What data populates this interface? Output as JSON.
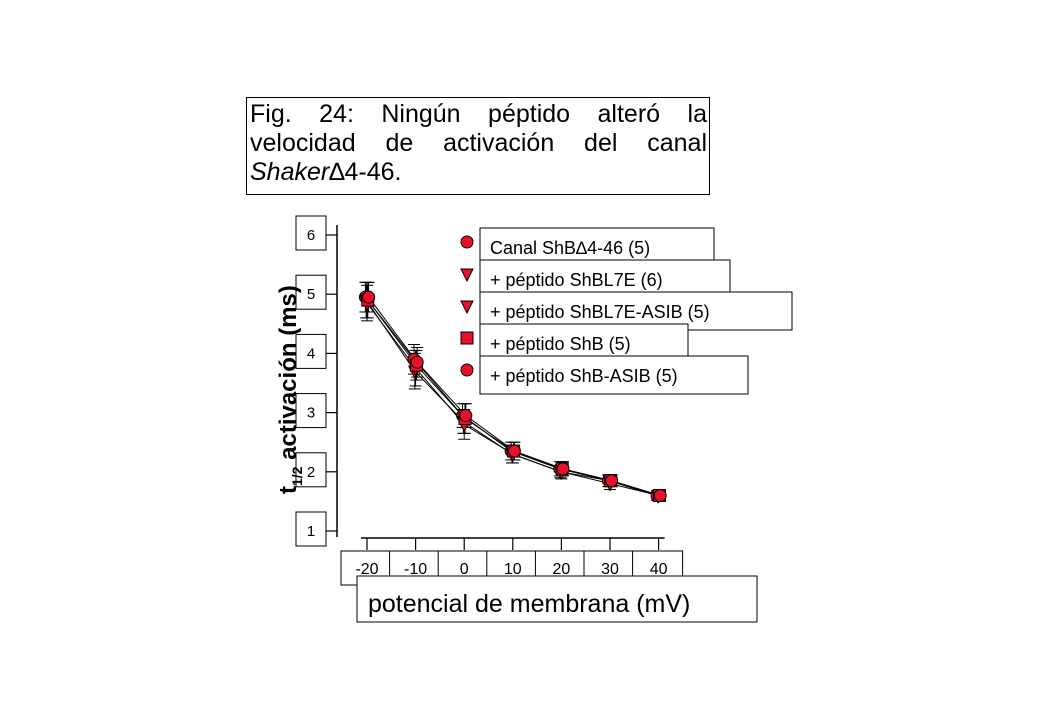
{
  "caption": {
    "line1": "Fig. 24: Ningún péptido alteró la velocidad de activación del canal",
    "italic": "Shaker",
    "delta": "∆",
    "end": "4-46."
  },
  "chart_data": {
    "type": "line",
    "title": "",
    "xlabel": "potencial de membrana (mV)",
    "ylabel_main": "t",
    "ylabel_sub": "1/2",
    "ylabel_rest": " activación (ms)",
    "xlim": [
      -20,
      40
    ],
    "ylim": [
      1,
      6
    ],
    "xticks": [
      -20,
      -10,
      0,
      10,
      20,
      30,
      40
    ],
    "yticks": [
      1,
      2,
      3,
      4,
      5,
      6
    ],
    "x": [
      -20,
      -10,
      0,
      10,
      20,
      30,
      40
    ],
    "marker_color": "#e8102a",
    "series": [
      {
        "name": "Canal ShB∆4-46 (5)",
        "marker": "circle",
        "values": [
          4.95,
          3.9,
          2.95,
          2.35,
          2.05,
          1.85,
          1.6
        ],
        "err": [
          0.25,
          0.25,
          0.2,
          0.15,
          0.12,
          0.1,
          0.08
        ]
      },
      {
        "name": "+ péptido ShBL7E (6)",
        "marker": "triangle",
        "values": [
          4.9,
          3.7,
          2.85,
          2.3,
          2.0,
          1.85,
          1.6
        ],
        "err": [
          0.3,
          0.3,
          0.2,
          0.15,
          0.1,
          0.1,
          0.08
        ]
      },
      {
        "name": "+ péptido ShBL7E-ASIB (5)",
        "marker": "triangle",
        "values": [
          4.85,
          3.75,
          2.8,
          2.3,
          2.0,
          1.8,
          1.6
        ],
        "err": [
          0.3,
          0.3,
          0.25,
          0.15,
          0.12,
          0.1,
          0.08
        ]
      },
      {
        "name": "+ péptido ShB (5)",
        "marker": "square",
        "values": [
          4.9,
          3.8,
          2.9,
          2.35,
          2.05,
          1.85,
          1.6
        ],
        "err": [
          0.3,
          0.25,
          0.25,
          0.15,
          0.12,
          0.1,
          0.08
        ]
      },
      {
        "name": "+ péptido ShB-ASIB (5)",
        "marker": "circle",
        "values": [
          4.95,
          3.85,
          2.95,
          2.35,
          2.05,
          1.85,
          1.6
        ],
        "err": [
          0.25,
          0.25,
          0.2,
          0.15,
          0.12,
          0.1,
          0.08
        ]
      }
    ]
  }
}
